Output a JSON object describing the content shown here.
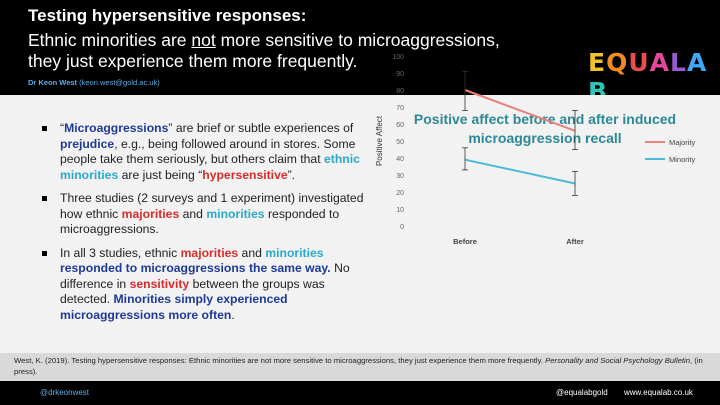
{
  "header": {
    "title": "Testing hypersensitive responses:",
    "subtitle_part1": "Ethnic minorities are ",
    "subtitle_not": "not",
    "subtitle_part2": " more sensitive to microaggressions, they just experience them more frequently.",
    "author_name": "Dr Keon West",
    "author_email": "(keon.west@gold.ac.uk)"
  },
  "logo": {
    "letters": [
      "E",
      "Q",
      "U",
      "A",
      "L",
      "A",
      "B"
    ],
    "colors": [
      "#f2c12e",
      "#f08a24",
      "#e94e4e",
      "#e6489b",
      "#9b59d0",
      "#3fa9f5",
      "#2ec4b6"
    ]
  },
  "bullets": {
    "b1": {
      "t1": "“",
      "microaggressions": "Microaggressions",
      "t2": "” are brief or subtle experiences of ",
      "prejudice": "prejudice",
      "t3": ", e.g., being followed around in stores. Some people take them seriously, but others claim that ",
      "ethnic_minorities": "ethnic minorities",
      "t4": " are just being “",
      "hypersensitive": "hypersensitive",
      "t5": "”."
    },
    "b2": {
      "t1": "Three studies (2 surveys and 1 experiment) investigated how ethnic ",
      "majorities": "majorities",
      "t2": " and ",
      "minorities": "minorities",
      "t3": " responded to microaggressions."
    },
    "b3": {
      "t1": "In all 3 studies, ethnic ",
      "majorities": "majorities",
      "t2": " and ",
      "minorities": "minorities",
      "t3": " ",
      "same_way": "responded to microaggressions the same way.",
      "t4": " No difference in ",
      "sensitivity": "sensitivity",
      "t5": " between the groups was detected. ",
      "more_often": "Minorities simply experienced microaggressions more often",
      "t6": "."
    }
  },
  "chart_data": {
    "type": "line",
    "title": "Positive affect before and after induced microaggression recall",
    "xlabel": "",
    "ylabel": "Positive Affect",
    "categories": [
      "Before",
      "After"
    ],
    "ylim": [
      0,
      100
    ],
    "yticks": [
      0,
      10,
      20,
      30,
      40,
      50,
      60,
      70,
      80,
      90,
      100
    ],
    "series": [
      {
        "name": "Majority",
        "values": [
          80,
          56
        ],
        "err_low": [
          68,
          45
        ],
        "err_high": [
          91,
          68
        ],
        "color": "#e8827b"
      },
      {
        "name": "Minority",
        "values": [
          39,
          25
        ],
        "err_low": [
          33,
          18
        ],
        "err_high": [
          46,
          32
        ],
        "color": "#4cb9d6"
      }
    ],
    "grid": false,
    "legend": "right"
  },
  "citation": {
    "text": "West, K. (2019). Testing hypersensitive responses: Ethnic minorities are not more sensitive to microaggressions, they just experience them more frequently. ",
    "journal": "Personality and Social Psychology Bulletin",
    "tail": ", (in press)."
  },
  "footer": {
    "twitter": "@drkeonwest",
    "handle": "@equalabgold",
    "website": "www.equalab.co.uk"
  }
}
